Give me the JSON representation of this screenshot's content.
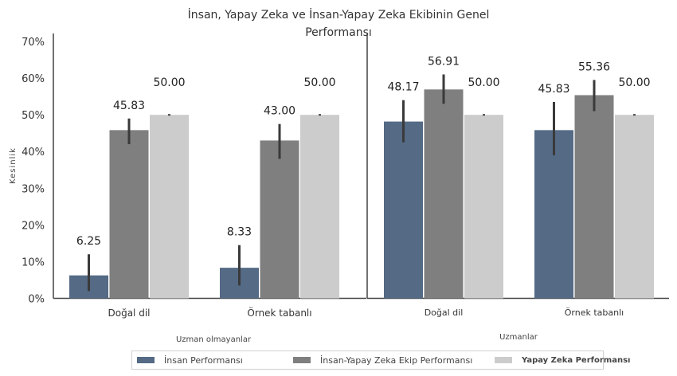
{
  "title": "İnsan, Yapay Zeka ve İnsan-Yapay Zeka Ekibinin Genel Performansı",
  "chart_data": {
    "type": "bar",
    "ylabel": "Kesinlik",
    "ylim": [
      0,
      70
    ],
    "yticks": [
      "0%",
      "10%",
      "20%",
      "30%",
      "40%",
      "50%",
      "60%",
      "70%"
    ],
    "legend_position": "bottom",
    "grid": false,
    "series": [
      {
        "name": "İnsan Performansı",
        "color": "#546a85"
      },
      {
        "name": "İnsan-Yapay Zeka Ekip Performansı",
        "color": "#7f7f7f"
      },
      {
        "name": "Yapay Zeka Performansı",
        "color": "#cccccc"
      }
    ],
    "panels": [
      {
        "group_label": "Uzman olmayanlar",
        "categories": [
          "Doğal dil",
          "Örnek tabanlı"
        ],
        "values": [
          [
            6.25,
            8.33
          ],
          [
            45.83,
            43.0
          ],
          [
            50.0,
            50.0
          ]
        ],
        "value_labels": [
          [
            "6.25",
            "8.33"
          ],
          [
            "45.83",
            "43.00"
          ],
          [
            "50.00",
            "50.00"
          ]
        ],
        "errors": [
          [
            [
              2,
              12
            ],
            [
              3.5,
              14.5
            ]
          ],
          [
            [
              42,
              49
            ],
            [
              38,
              47.5
            ]
          ],
          [
            [
              49.8,
              50.2
            ],
            [
              49.8,
              50.2
            ]
          ]
        ]
      },
      {
        "group_label": "Uzmanlar",
        "categories": [
          "Doğal dil",
          "Örnek tabanlı"
        ],
        "values": [
          [
            48.17,
            45.83
          ],
          [
            56.91,
            55.36
          ],
          [
            50.0,
            50.0
          ]
        ],
        "value_labels": [
          [
            "48.17",
            "45.83"
          ],
          [
            "56.91",
            "55.36"
          ],
          [
            "50.00",
            "50.00"
          ]
        ],
        "errors": [
          [
            [
              42.5,
              54
            ],
            [
              39,
              53.5
            ]
          ],
          [
            [
              53,
              61
            ],
            [
              51,
              59.5
            ]
          ],
          [
            [
              49.8,
              50.2
            ],
            [
              49.8,
              50.2
            ]
          ]
        ]
      }
    ]
  }
}
